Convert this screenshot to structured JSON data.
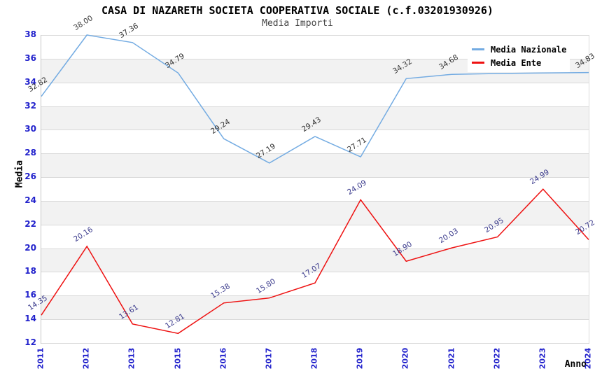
{
  "header": {
    "title": "CASA DI NAZARETH SOCIETA COOPERATIVA SOCIALE (c.f.03201930926)",
    "subtitle": "Media Importi"
  },
  "axes": {
    "y_title": "Media",
    "x_title": "Anno",
    "y_ticks": [
      38,
      36,
      34,
      32,
      30,
      28,
      26,
      24,
      22,
      20,
      18,
      16,
      14,
      12
    ],
    "x_ticks": [
      "2011",
      "2012",
      "2013",
      "2015",
      "2016",
      "2017",
      "2018",
      "2019",
      "2020",
      "2021",
      "2022",
      "2023",
      "2024"
    ]
  },
  "legend": {
    "items": [
      {
        "label": "Media Nazionale",
        "color": "#73abe2"
      },
      {
        "label": "Media Ente",
        "color": "#ee1111"
      }
    ]
  },
  "colors": {
    "tick_labels": "#2222cc",
    "gridline": "#d9d9d9",
    "band": "#f2f2f2",
    "title": "#000000",
    "subtitle": "#444444"
  },
  "chart_data": {
    "type": "line",
    "title": "CASA DI NAZARETH SOCIETA COOPERATIVA SOCIALE (c.f.03201930926)",
    "subtitle": "Media Importi",
    "xlabel": "Anno",
    "ylabel": "Media",
    "ylim": [
      12,
      38
    ],
    "ytick_step": 2,
    "grid": true,
    "banded_background": true,
    "legend_position": "top-right",
    "x": [
      "2011",
      "2012",
      "2013",
      "2015",
      "2016",
      "2017",
      "2018",
      "2019",
      "2020",
      "2021",
      "2022",
      "2023",
      "2024"
    ],
    "series": [
      {
        "name": "Media Nazionale",
        "color": "#73abe2",
        "label_color": "#333333",
        "values": [
          32.82,
          38.0,
          37.36,
          34.79,
          29.24,
          27.19,
          29.43,
          27.71,
          34.32,
          34.68,
          34.75,
          34.8,
          34.83
        ],
        "labels": [
          "32.82",
          "38.00",
          "37.36",
          "34.79",
          "29.24",
          "27.19",
          "29.43",
          "27.71",
          "34.32",
          "34.68",
          null,
          null,
          "34.83"
        ]
      },
      {
        "name": "Media Ente",
        "color": "#ee1111",
        "label_color": "#3a3a8c",
        "values": [
          14.35,
          20.16,
          13.61,
          12.81,
          15.38,
          15.8,
          17.07,
          24.09,
          18.9,
          20.03,
          20.95,
          24.99,
          20.72
        ],
        "labels": [
          "14.35",
          "20.16",
          "13.61",
          "12.81",
          "15.38",
          "15.80",
          "17.07",
          "24.09",
          "18.90",
          "20.03",
          "20.95",
          "24.99",
          "20.72"
        ]
      }
    ]
  }
}
